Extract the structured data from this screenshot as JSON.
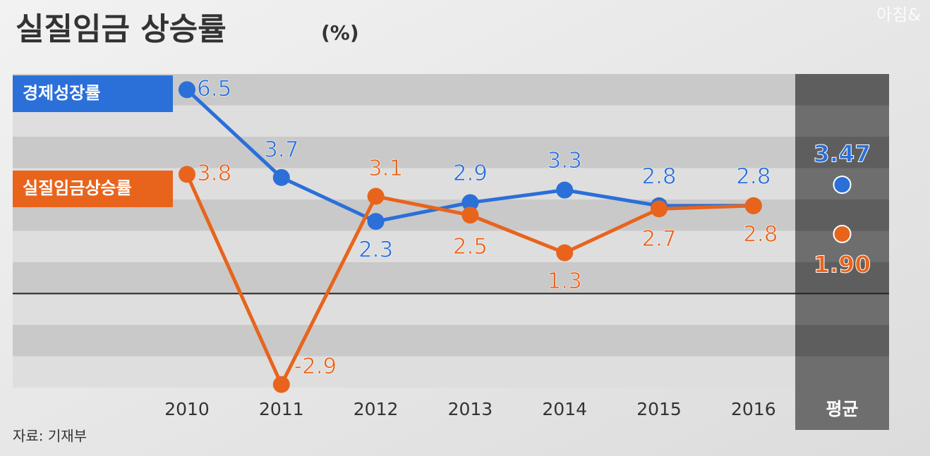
{
  "chart_data": {
    "type": "line",
    "title": "실질임금 상승률",
    "unit": "(%)",
    "source": "자료: 기재부",
    "watermark": "아침&",
    "categories": [
      "2010",
      "2011",
      "2012",
      "2013",
      "2014",
      "2015",
      "2016"
    ],
    "ylim": [
      -3,
      7
    ],
    "series": [
      {
        "name": "경제성장률",
        "color": "#2b6fd8",
        "values": [
          6.5,
          3.7,
          2.3,
          2.9,
          3.3,
          2.8,
          2.8
        ]
      },
      {
        "name": "실질임금상승률",
        "color": "#e8641c",
        "values": [
          3.8,
          -2.9,
          3.1,
          2.5,
          1.3,
          2.7,
          2.8
        ]
      }
    ],
    "average": {
      "label": "평균",
      "values": [
        3.47,
        1.9
      ],
      "value_labels": [
        "3.47",
        "1.90"
      ]
    }
  }
}
